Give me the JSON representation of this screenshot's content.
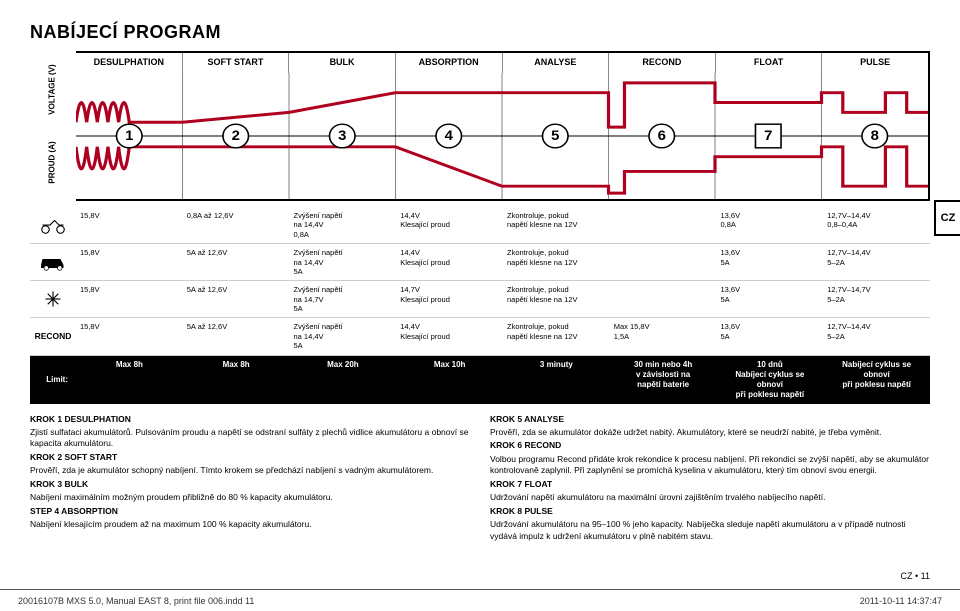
{
  "title": "NABÍJECÍ PROGRAM",
  "side_tab": "CZ",
  "phases": [
    "DESULPHATION",
    "SOFT START",
    "BULK",
    "ABSORPTION",
    "ANALYSE",
    "RECOND",
    "FLOAT",
    "PULSE"
  ],
  "axis_v": "VOLTAGE (V)",
  "axis_a": "PROUD (A)",
  "chart": {
    "nums": [
      "1",
      "2",
      "3",
      "4",
      "5",
      "6",
      "7",
      "8"
    ],
    "curve_color": "#b00020",
    "bg": "#ffffff"
  },
  "rows": [
    {
      "icon": "moto",
      "c": [
        "15,8V",
        "0,8A až 12,6V",
        "Zvýšení napětí\nna 14,4V\n0,8A",
        "14,4V\nKlesající proud",
        "Zkontroluje, pokud\nnapětí klesne na 12V",
        "",
        "13,6V\n0,8A",
        "12,7V–14,4V\n0,8–0,4A"
      ]
    },
    {
      "icon": "car",
      "c": [
        "15,8V",
        "5A až 12,6V",
        "Zvýšení napětí\nna 14,4V\n5A",
        "14,4V\nKlesající proud",
        "Zkontroluje, pokud\nnapětí klesne na 12V",
        "",
        "13,6V\n5A",
        "12,7V–14,4V\n5–2A"
      ]
    },
    {
      "icon": "snow",
      "c": [
        "15,8V",
        "5A až 12,6V",
        "Zvýšení napětí\nna 14,7V\n5A",
        "14,7V\nKlesající proud",
        "Zkontroluje, pokud\nnapětí klesne na 12V",
        "",
        "13,6V\n5A",
        "12,7V–14,7V\n5–2A"
      ]
    },
    {
      "icon": "recond",
      "c": [
        "15,8V",
        "5A až 12,6V",
        "Zvýšení napětí\nna 14,4V\n5A",
        "14,4V\nKlesající proud",
        "Zkontroluje, pokud\nnapětí klesne na 12V",
        "Max 15,8V\n1,5A",
        "13,6V\n5A",
        "12,7V–14,4V\n5–2A"
      ]
    }
  ],
  "limit_label": "Limit:",
  "limits": [
    "Max 8h",
    "Max 8h",
    "Max 20h",
    "Max 10h",
    "3 minuty",
    "30 min nebo 4h\nv závislosti na\nnapětí baterie",
    "10 dnů\nNabíjecí cyklus se\nobnoví\npři poklesu napětí",
    "Nabíjecí cyklus se\nobnoví\npři poklesu napětí"
  ],
  "left_col": [
    {
      "t": "KROK 1 DESULPHATION",
      "b": "Zjistí sulfataci akumulátorů. Pulsováním proudu a napětí se odstraní sulfáty z plechů vidlice akumulátoru a obnoví se kapacita akumulátoru."
    },
    {
      "t": "KROK 2 SOFT START",
      "b": "Prověří, zda je akumulátor schopný nabíjení. Tímto krokem se předchází nabíjení s vadným akumulátorem."
    },
    {
      "t": "KROK 3 BULK",
      "b": "Nabíjení maximálním možným proudem přibližně do 80 % kapacity akumulátoru."
    },
    {
      "t": "STEP 4 ABSORPTION",
      "b": "Nabíjení klesajícím proudem až na maximum 100 % kapacity akumulátoru."
    }
  ],
  "right_col": [
    {
      "t": "KROK 5 ANALYSE",
      "b": "Prověří, zda se akumulátor dokáže udržet nabitý. Akumulátory, které se neudrží nabité, je třeba vyměnit."
    },
    {
      "t": "KROK 6 RECOND",
      "b": "Volbou programu Recond přidáte krok rekondice k procesu nabíjení. Při rekondici se zvýší napětí, aby se akumulátor kontrolovaně zaplynil. Při zaplynění se promíchá kyselina v akumulátoru, který tím obnoví svou energii."
    },
    {
      "t": "KROK 7 FLOAT",
      "b": "Udržování napětí akumulátoru na maximální úrovni zajištěním trvalého nabíjecího napětí."
    },
    {
      "t": "KROK 8 PULSE",
      "b": "Udržování akumulátoru na 95–100 % jeho kapacity. Nabíječka sleduje napětí akumulátoru a v případě nutnosti vydává impulz k udržení akumulátoru v plně nabitém stavu."
    }
  ],
  "footer_right": "CZ • 11",
  "footer_file": "20016107B MXS 5.0, Manual EAST 8, print file 006.indd   11",
  "footer_time": "2011-10-11   14:37:47"
}
